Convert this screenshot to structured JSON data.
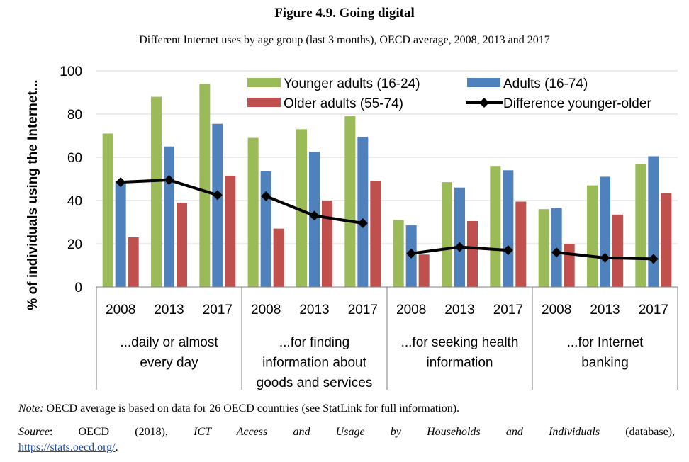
{
  "header": {
    "title": "Figure 4.9. Going digital",
    "subtitle": "Different Internet uses by age group (last 3 months), OECD average, 2008, 2013 and 2017"
  },
  "footer": {
    "note_label": "Note:",
    "note_text": " OECD average is based on data for 26 OECD countries (see StatLink for full information).",
    "source_label": "Source",
    "source_colon": ":",
    "source_org": "OECD (2018),",
    "source_db_title": "ICT Access and Usage by Households and Individuals",
    "source_db_type": "(database),",
    "source_url": "https://stats.oecd.org/",
    "source_end": "."
  },
  "colors": {
    "younger": "#9bbb59",
    "adults": "#4f81bd",
    "older": "#c0504d",
    "difference": "#000000",
    "gridline": "#d9d9d9",
    "axis": "#7f7f7f"
  },
  "chart_data": {
    "type": "bar",
    "ylabel": "% of individuals using the Internet...",
    "ylim": [
      0,
      100
    ],
    "yticks": [
      0,
      20,
      40,
      60,
      80,
      100
    ],
    "grid": true,
    "legend_position": "top-right",
    "groups": [
      {
        "label_lines": [
          "...daily or almost",
          "every day"
        ],
        "years": [
          "2008",
          "2013",
          "2017"
        ]
      },
      {
        "label_lines": [
          "...for finding",
          "information about",
          "goods and services"
        ],
        "years": [
          "2008",
          "2013",
          "2017"
        ]
      },
      {
        "label_lines": [
          "...for seeking health",
          "information"
        ],
        "years": [
          "2008",
          "2013",
          "2017"
        ]
      },
      {
        "label_lines": [
          "...for Internet",
          "banking"
        ],
        "years": [
          "2008",
          "2013",
          "2017"
        ]
      }
    ],
    "series": [
      {
        "name": "Younger adults (16-24)",
        "kind": "bar",
        "color": "#9bbb59",
        "values": [
          71,
          88,
          94,
          69,
          73,
          79,
          31,
          48.5,
          56,
          36,
          47,
          57
        ]
      },
      {
        "name": "Adults (16-74)",
        "kind": "bar",
        "color": "#4f81bd",
        "values": [
          49,
          65,
          75.5,
          53.5,
          62.5,
          69.5,
          28.5,
          46,
          54,
          36.5,
          51,
          60.5
        ]
      },
      {
        "name": "Older adults (55-74)",
        "kind": "bar",
        "color": "#c0504d",
        "values": [
          23,
          39,
          51.5,
          27,
          40,
          49,
          15,
          30.5,
          39.5,
          20,
          33.5,
          43.5
        ]
      },
      {
        "name": "Difference younger-older",
        "kind": "line",
        "color": "#000000",
        "values": [
          48.5,
          49.5,
          42.5,
          42,
          33,
          29.5,
          15.5,
          18.5,
          17,
          16,
          13.5,
          13
        ]
      }
    ]
  }
}
